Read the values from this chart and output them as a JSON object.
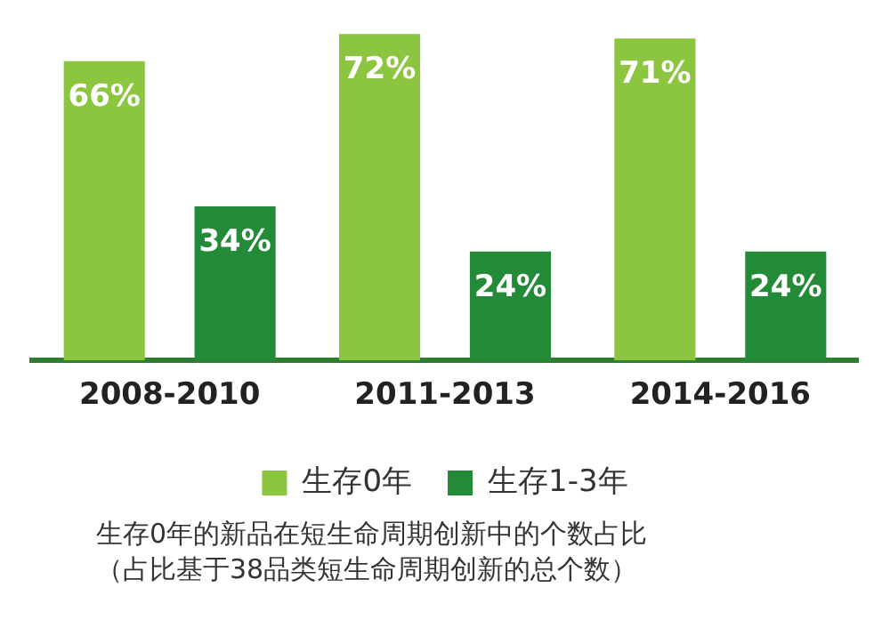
{
  "chart_data": {
    "type": "bar",
    "categories": [
      "2008-2010",
      "2011-2013",
      "2014-2016"
    ],
    "series": [
      {
        "name": "生存0年",
        "color": "#8cc540",
        "values": [
          66,
          72,
          71
        ],
        "value_labels": [
          "66%",
          "72%",
          "71%"
        ]
      },
      {
        "name": "生存1-3年",
        "color": "#238b37",
        "values": [
          34,
          24,
          24
        ],
        "value_labels": [
          "34%",
          "24%",
          "24%"
        ]
      }
    ],
    "legend": "bottom",
    "grid": false,
    "annotations": [
      "生存0年的新品在短生命周期创新中的个数占比",
      "（占比基于38品类短生命周期创新的总个数）"
    ]
  }
}
